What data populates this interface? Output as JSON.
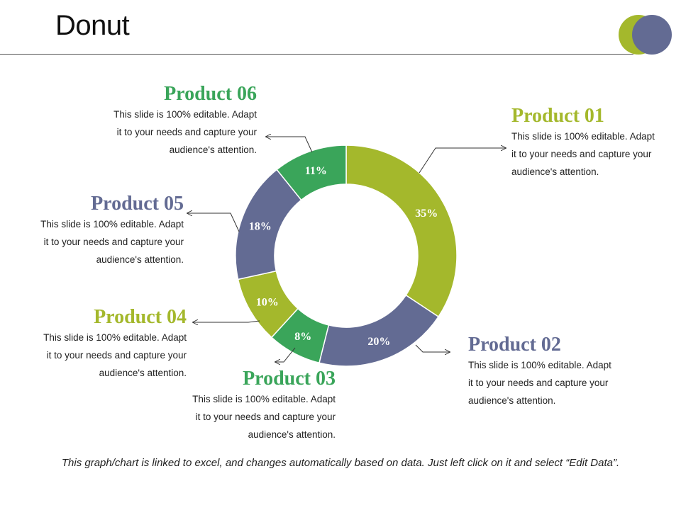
{
  "title": "Donut",
  "footer": "This graph/chart is linked to excel, and changes automatically based on data. Just left click on it and select “Edit Data”.",
  "colors": {
    "green_light": "#a4b82c",
    "slate": "#636b93",
    "green": "#3aa55a"
  },
  "chart_data": {
    "type": "donut",
    "start": "top, clockwise",
    "slices": [
      {
        "name": "Product 01",
        "value": 35,
        "label": "35%",
        "color": "#a4b82c"
      },
      {
        "name": "Product 02",
        "value": 20,
        "label": "20%",
        "color": "#636b93"
      },
      {
        "name": "Product 03",
        "value": 8,
        "label": "8%",
        "color": "#3aa55a"
      },
      {
        "name": "Product 04",
        "value": 10,
        "label": "10%",
        "color": "#a4b82c"
      },
      {
        "name": "Product 05",
        "value": 18,
        "label": "18%",
        "color": "#636b93"
      },
      {
        "name": "Product 06",
        "value": 11,
        "label": "11%",
        "color": "#3aa55a"
      }
    ]
  },
  "products": [
    {
      "title": "Product 01",
      "color": "#a4b82c",
      "lines": [
        "This slide is 100% editable. Adapt",
        "it to your needs and capture your",
        "audience's attention."
      ]
    },
    {
      "title": "Product 02",
      "color": "#636b93",
      "lines": [
        "This slide is 100% editable. Adapt",
        "it to your needs and capture your",
        "audience's attention."
      ]
    },
    {
      "title": "Product 03",
      "color": "#3aa55a",
      "lines": [
        "This slide is 100% editable. Adapt",
        "it to your needs and capture your",
        "audience's attention."
      ]
    },
    {
      "title": "Product 04",
      "color": "#a4b82c",
      "lines": [
        "This slide is 100% editable. Adapt",
        "it to your needs and capture your",
        "audience's attention."
      ]
    },
    {
      "title": "Product 05",
      "color": "#636b93",
      "lines": [
        "This slide is 100% editable. Adapt",
        "it to your needs and capture your",
        "audience's attention."
      ]
    },
    {
      "title": "Product 06",
      "color": "#3aa55a",
      "lines": [
        "This slide is 100% editable. Adapt",
        "it to your needs and capture your",
        "audience's attention."
      ]
    }
  ]
}
